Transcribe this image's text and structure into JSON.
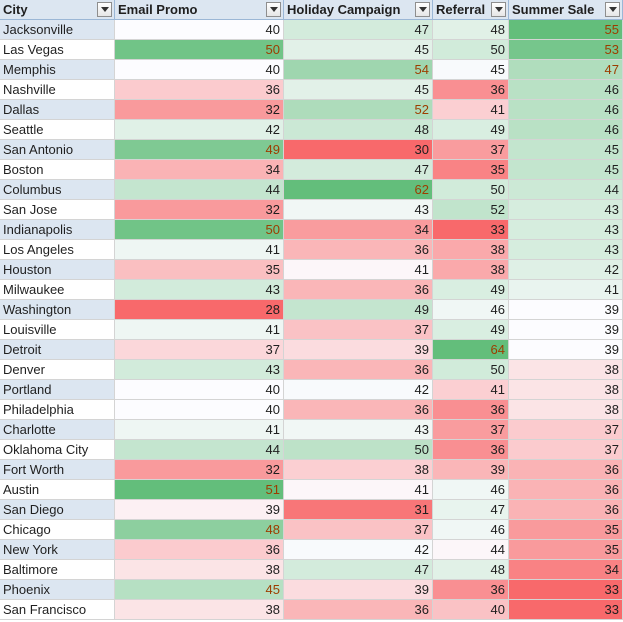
{
  "columns": [
    {
      "label": "City"
    },
    {
      "label": "Email Promo"
    },
    {
      "label": "Holiday Campaign"
    },
    {
      "label": "Referral"
    },
    {
      "label": "Summer Sale"
    }
  ],
  "rows": [
    [
      "Jacksonville",
      "40",
      "47",
      "48",
      "55"
    ],
    [
      "Las Vegas",
      "50",
      "45",
      "50",
      "53"
    ],
    [
      "Memphis",
      "40",
      "54",
      "45",
      "47"
    ],
    [
      "Nashville",
      "36",
      "45",
      "36",
      "46"
    ],
    [
      "Dallas",
      "32",
      "52",
      "41",
      "46"
    ],
    [
      "Seattle",
      "42",
      "48",
      "49",
      "46"
    ],
    [
      "San Antonio",
      "49",
      "30",
      "37",
      "45"
    ],
    [
      "Boston",
      "34",
      "47",
      "35",
      "45"
    ],
    [
      "Columbus",
      "44",
      "62",
      "50",
      "44"
    ],
    [
      "San Jose",
      "32",
      "43",
      "52",
      "43"
    ],
    [
      "Indianapolis",
      "50",
      "34",
      "33",
      "43"
    ],
    [
      "Los Angeles",
      "41",
      "36",
      "38",
      "43"
    ],
    [
      "Houston",
      "35",
      "41",
      "38",
      "42"
    ],
    [
      "Milwaukee",
      "43",
      "36",
      "49",
      "41"
    ],
    [
      "Washington",
      "28",
      "49",
      "46",
      "39"
    ],
    [
      "Louisville",
      "41",
      "37",
      "49",
      "39"
    ],
    [
      "Detroit",
      "37",
      "39",
      "64",
      "39"
    ],
    [
      "Denver",
      "43",
      "36",
      "50",
      "38"
    ],
    [
      "Portland",
      "40",
      "42",
      "41",
      "38"
    ],
    [
      "Philadelphia",
      "40",
      "36",
      "36",
      "38"
    ],
    [
      "Charlotte",
      "41",
      "43",
      "37",
      "37"
    ],
    [
      "Oklahoma City",
      "44",
      "50",
      "36",
      "37"
    ],
    [
      "Fort Worth",
      "32",
      "38",
      "39",
      "36"
    ],
    [
      "Austin",
      "51",
      "41",
      "46",
      "36"
    ],
    [
      "San Diego",
      "39",
      "31",
      "47",
      "36"
    ],
    [
      "Chicago",
      "48",
      "37",
      "46",
      "35"
    ],
    [
      "New York",
      "36",
      "42",
      "44",
      "35"
    ],
    [
      "Baltimore",
      "38",
      "47",
      "48",
      "34"
    ],
    [
      "Phoenix",
      "45",
      "39",
      "36",
      "33"
    ],
    [
      "San Francisco",
      "38",
      "36",
      "40",
      "33"
    ]
  ],
  "style": {
    "header_fill": "#dce6f1",
    "city_fill_alt": "#dce6f1",
    "scale_low": "#f8696b",
    "scale_mid": "#fcfcff",
    "scale_high": "#63be7b",
    "text_color": "#1f1f1f",
    "text_highlight": "#9c3d00"
  },
  "icons": {
    "filter": "filter-dropdown-icon"
  }
}
